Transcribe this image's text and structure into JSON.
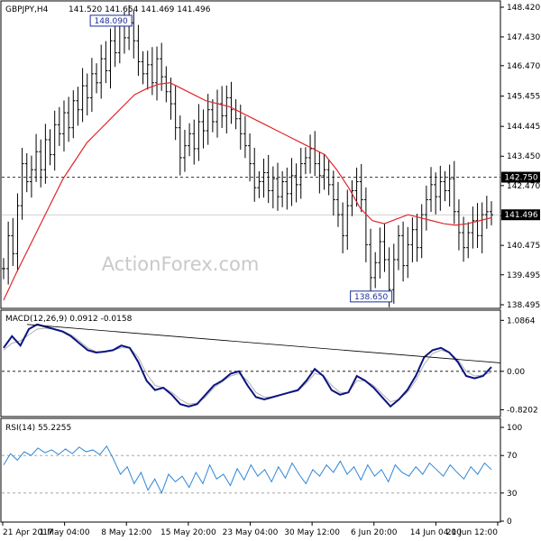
{
  "chart_data": {
    "type": "line",
    "symbol_title": "GBPJPY,H4",
    "ohlc_text": "141.520 141.654 141.469 141.496",
    "watermark": "ActionForex.com",
    "x_tick_labels": [
      "21 Apr 2017",
      "1 May 04:00",
      "8 May 12:00",
      "15 May 20:00",
      "23 May 04:00",
      "30 May 12:00",
      "6 Jun 20:00",
      "14 Jun 04:00",
      "21 Jun 12:00"
    ],
    "panels": {
      "price": {
        "y_range": [
          138.495,
          148.42
        ],
        "y_tick_labels": [
          "148.420",
          "147.430",
          "146.470",
          "145.455",
          "144.445",
          "143.450",
          "142.470",
          "141.470",
          "140.475",
          "139.495",
          "138.495"
        ],
        "resistance_level": 142.75,
        "resistance_label": "142.750",
        "current_price": 141.496,
        "current_label": "141.496",
        "high_annotation": {
          "value": 148.09,
          "label": "148.090"
        },
        "low_annotation": {
          "value": 138.65,
          "label": "138.650"
        },
        "series": [
          {
            "kind": "price-bars",
            "color": "#000000",
            "close": [
              139.7,
              140.8,
              140.2,
              141.8,
              143.2,
              142.6,
              143.0,
              143.6,
              143.0,
              144.0,
              143.5,
              144.5,
              144.2,
              144.9,
              144.4,
              145.3,
              145.0,
              145.8,
              145.4,
              146.2,
              145.9,
              146.7,
              146.3,
              147.3,
              146.9,
              147.8,
              147.4,
              147.9,
              147.3,
              146.6,
              146.2,
              146.5,
              145.9,
              146.7,
              146.1,
              145.6,
              145.2,
              144.4,
              143.4,
              143.8,
              144.2,
              143.7,
              144.6,
              144.3,
              145.0,
              144.6,
              145.2,
              144.8,
              145.4,
              145.0,
              144.7,
              144.2,
              143.8,
              143.2,
              142.4,
              142.6,
              142.9,
              142.3,
              142.7,
              142.1,
              142.6,
              142.2,
              142.8,
              142.5,
              143.2,
              143.4,
              143.7,
              143.2,
              142.8,
              143.0,
              142.5,
              142.0,
              141.5,
              140.8,
              141.8,
              142.3,
              142.6,
              142.0,
              140.5,
              139.4,
              139.9,
              140.6,
              140.0,
              139.0,
              140.0,
              140.8,
              139.8,
              140.5,
              141.0,
              140.4,
              141.5,
              142.0,
              142.5,
              142.1,
              142.6,
              142.3,
              142.7,
              141.6,
              140.9,
              140.4,
              140.9,
              141.3,
              140.8,
              141.5,
              141.6,
              141.496
            ]
          },
          {
            "kind": "moving-average",
            "color": "#e0262b",
            "values": [
              138.65,
              139.5,
              140.3,
              141.1,
              141.9,
              142.7,
              143.3,
              143.9,
              144.3,
              144.7,
              145.1,
              145.5,
              145.7,
              145.85,
              145.9,
              145.7,
              145.5,
              145.3,
              145.2,
              145.1,
              144.9,
              144.7,
              144.5,
              144.3,
              144.1,
              143.9,
              143.7,
              143.5,
              143.0,
              142.4,
              141.7,
              141.3,
              141.2,
              141.35,
              141.5,
              141.4,
              141.3,
              141.2,
              141.15,
              141.2,
              141.3,
              141.4
            ]
          }
        ]
      },
      "macd": {
        "title": "MACD(12,26,9) 0.0912 -0.0158",
        "y_range": [
          -0.85,
          1.15
        ],
        "y_tick_labels": [
          "1.0864",
          "0.00",
          "-0.8202"
        ],
        "zero_level": 0,
        "trendline_values": [
          1.0,
          0.18
        ],
        "series": [
          {
            "kind": "macd",
            "color": "#0b1480",
            "values": [
              0.5,
              0.75,
              0.55,
              0.9,
              1.0,
              0.95,
              0.9,
              0.85,
              0.75,
              0.6,
              0.45,
              0.4,
              0.42,
              0.45,
              0.55,
              0.5,
              0.2,
              -0.2,
              -0.4,
              -0.35,
              -0.5,
              -0.7,
              -0.75,
              -0.7,
              -0.5,
              -0.3,
              -0.2,
              -0.05,
              0.0,
              -0.3,
              -0.55,
              -0.6,
              -0.55,
              -0.5,
              -0.45,
              -0.4,
              -0.2,
              0.05,
              -0.1,
              -0.4,
              -0.5,
              -0.45,
              -0.1,
              -0.2,
              -0.35,
              -0.55,
              -0.75,
              -0.6,
              -0.4,
              -0.1,
              0.3,
              0.45,
              0.5,
              0.4,
              0.2,
              -0.1,
              -0.15,
              -0.1,
              0.09
            ]
          },
          {
            "kind": "signal",
            "color": "#b0b0b0",
            "values": [
              0.45,
              0.6,
              0.65,
              0.78,
              0.9,
              0.92,
              0.9,
              0.86,
              0.78,
              0.65,
              0.5,
              0.42,
              0.42,
              0.45,
              0.5,
              0.5,
              0.3,
              -0.05,
              -0.3,
              -0.35,
              -0.45,
              -0.6,
              -0.7,
              -0.68,
              -0.55,
              -0.35,
              -0.22,
              -0.1,
              -0.05,
              -0.2,
              -0.45,
              -0.55,
              -0.55,
              -0.5,
              -0.46,
              -0.42,
              -0.25,
              -0.05,
              -0.08,
              -0.3,
              -0.45,
              -0.45,
              -0.2,
              -0.2,
              -0.3,
              -0.48,
              -0.65,
              -0.6,
              -0.45,
              -0.2,
              0.15,
              0.38,
              0.45,
              0.4,
              0.25,
              0.0,
              -0.1,
              -0.08,
              -0.02
            ]
          }
        ]
      },
      "rsi": {
        "title": "RSI(14) 55.2255",
        "y_range": [
          0,
          100
        ],
        "y_tick_labels": [
          "100",
          "70",
          "30",
          "0"
        ],
        "levels": [
          70,
          30
        ],
        "series": [
          {
            "kind": "rsi",
            "color": "#2f86d8",
            "values": [
              60,
              72,
              65,
              74,
              70,
              78,
              73,
              76,
              71,
              77,
              72,
              79,
              74,
              76,
              71,
              80,
              66,
              50,
              58,
              40,
              52,
              33,
              45,
              30,
              50,
              42,
              48,
              36,
              52,
              40,
              60,
              45,
              50,
              38,
              56,
              44,
              60,
              48,
              55,
              42,
              58,
              46,
              62,
              50,
              40,
              55,
              48,
              60,
              52,
              64,
              50,
              58,
              44,
              60,
              48,
              55,
              42,
              60,
              52,
              48,
              58,
              50,
              62,
              55,
              48,
              60,
              52,
              45,
              58,
              50,
              62,
              55
            ]
          }
        ]
      }
    }
  }
}
